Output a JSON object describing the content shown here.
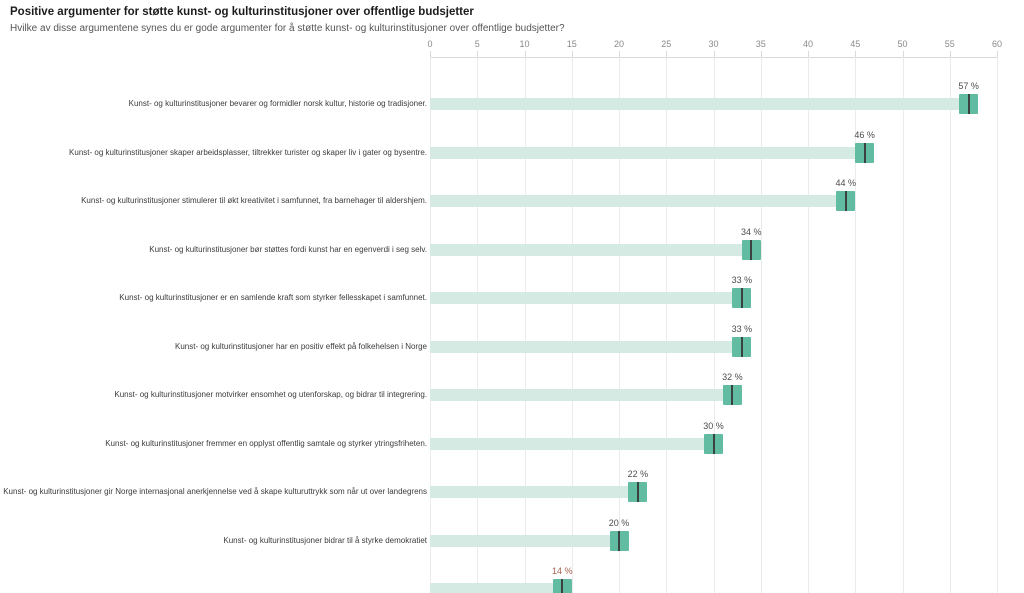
{
  "header": {
    "title": "Positive argumenter for støtte kunst- og kulturinstitusjoner over offentlige budsjetter",
    "subtitle": "Hvilke av disse argumentene synes du er gode argumenter for å støtte kunst- og kulturinstitusjoner over offentlige budsjetter?"
  },
  "chart_data": {
    "type": "bar",
    "orientation": "horizontal",
    "unit": "%",
    "axis": {
      "position": "top",
      "min": 0,
      "max": 60,
      "step": 5,
      "ticks": [
        0,
        5,
        10,
        15,
        20,
        25,
        30,
        35,
        40,
        45,
        50,
        55,
        60
      ]
    },
    "grid": true,
    "legend": false,
    "categories": [
      "Kunst- og kulturinstitusjoner bevarer og formidler norsk kultur, historie og tradisjoner.",
      "Kunst- og kulturinstitusjoner skaper arbeidsplasser, tiltrekker turister og skaper liv i gater og bysentre.",
      "Kunst- og kulturinstitusjoner stimulerer til økt kreativitet i samfunnet, fra barnehager til aldershjem.",
      "Kunst- og kulturinstitusjoner bør støttes fordi kunst har en egenverdi i seg selv.",
      "Kunst- og kulturinstitusjoner er en samlende kraft som styrker fellesskapet i samfunnet.",
      "Kunst- og kulturinstitusjoner har en positiv effekt på folkehelsen i Norge",
      "Kunst- og kulturinstitusjoner motvirker ensomhet og utenforskap, og bidrar til integrering.",
      "Kunst- og kulturinstitusjoner fremmer en opplyst offentlig samtale og styrker ytringsfriheten.",
      "Kunst- og kulturinstitusjoner gir Norge internasjonal anerkjennelse ved å skape kulturuttrykk som når ut over landegrens",
      "Kunst- og kulturinstitusjoner bidrar til å styrke demokratiet",
      ""
    ],
    "values": [
      57,
      46,
      44,
      34,
      33,
      33,
      32,
      30,
      22,
      20,
      14
    ],
    "value_labels": [
      "57 %",
      "46 %",
      "44 %",
      "34 %",
      "33 %",
      "33 %",
      "32 %",
      "30 %",
      "22 %",
      "20 %",
      "14 %"
    ],
    "interval_halfwidth_units": 1,
    "colors": {
      "bar_fill": "#d5eae3",
      "interval_box": "#61bca1",
      "marker_line": "#3a433f",
      "gridline": "#ebebeb",
      "axis_line": "#d9d9d9",
      "tick_text": "#8a8a8a",
      "category_text": "#3c3c3c",
      "value_text": "#4d4d4d",
      "value_text_last": "#a55f4c"
    }
  }
}
